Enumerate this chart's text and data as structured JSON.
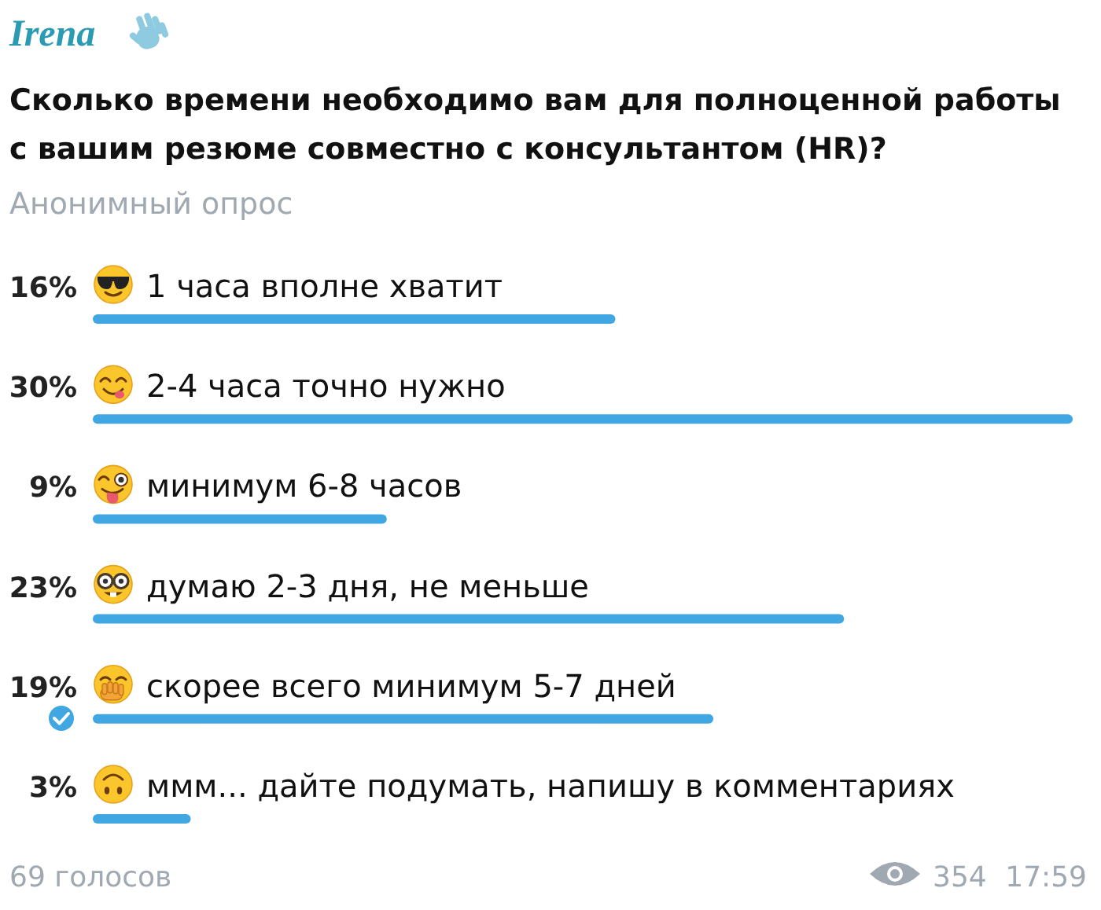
{
  "chart_data": {
    "type": "bar",
    "orientation": "horizontal",
    "title": "Сколько времени необходимо вам для полноценной работы с вашим резюме совместно с консультантом (HR)?",
    "subtitle": "Анонимный опрос",
    "categories": [
      "1 часа вполне хватит",
      "2-4 часа точно нужно",
      "минимум 6-8 часов",
      "думаю 2-3 дня, не меньше",
      "скорее всего минимум 5-7 дней",
      "ммм... дайте подумать, напишу в комментариях"
    ],
    "values": [
      16,
      30,
      9,
      23,
      19,
      3
    ],
    "value_labels": [
      "16%",
      "30%",
      "9%",
      "23%",
      "19%",
      "3%"
    ],
    "color": "#40a7e3",
    "tick_labels": "y",
    "annotations": [
      "Irena",
      "69 голосов",
      "354",
      "17:59"
    ]
  }
}
